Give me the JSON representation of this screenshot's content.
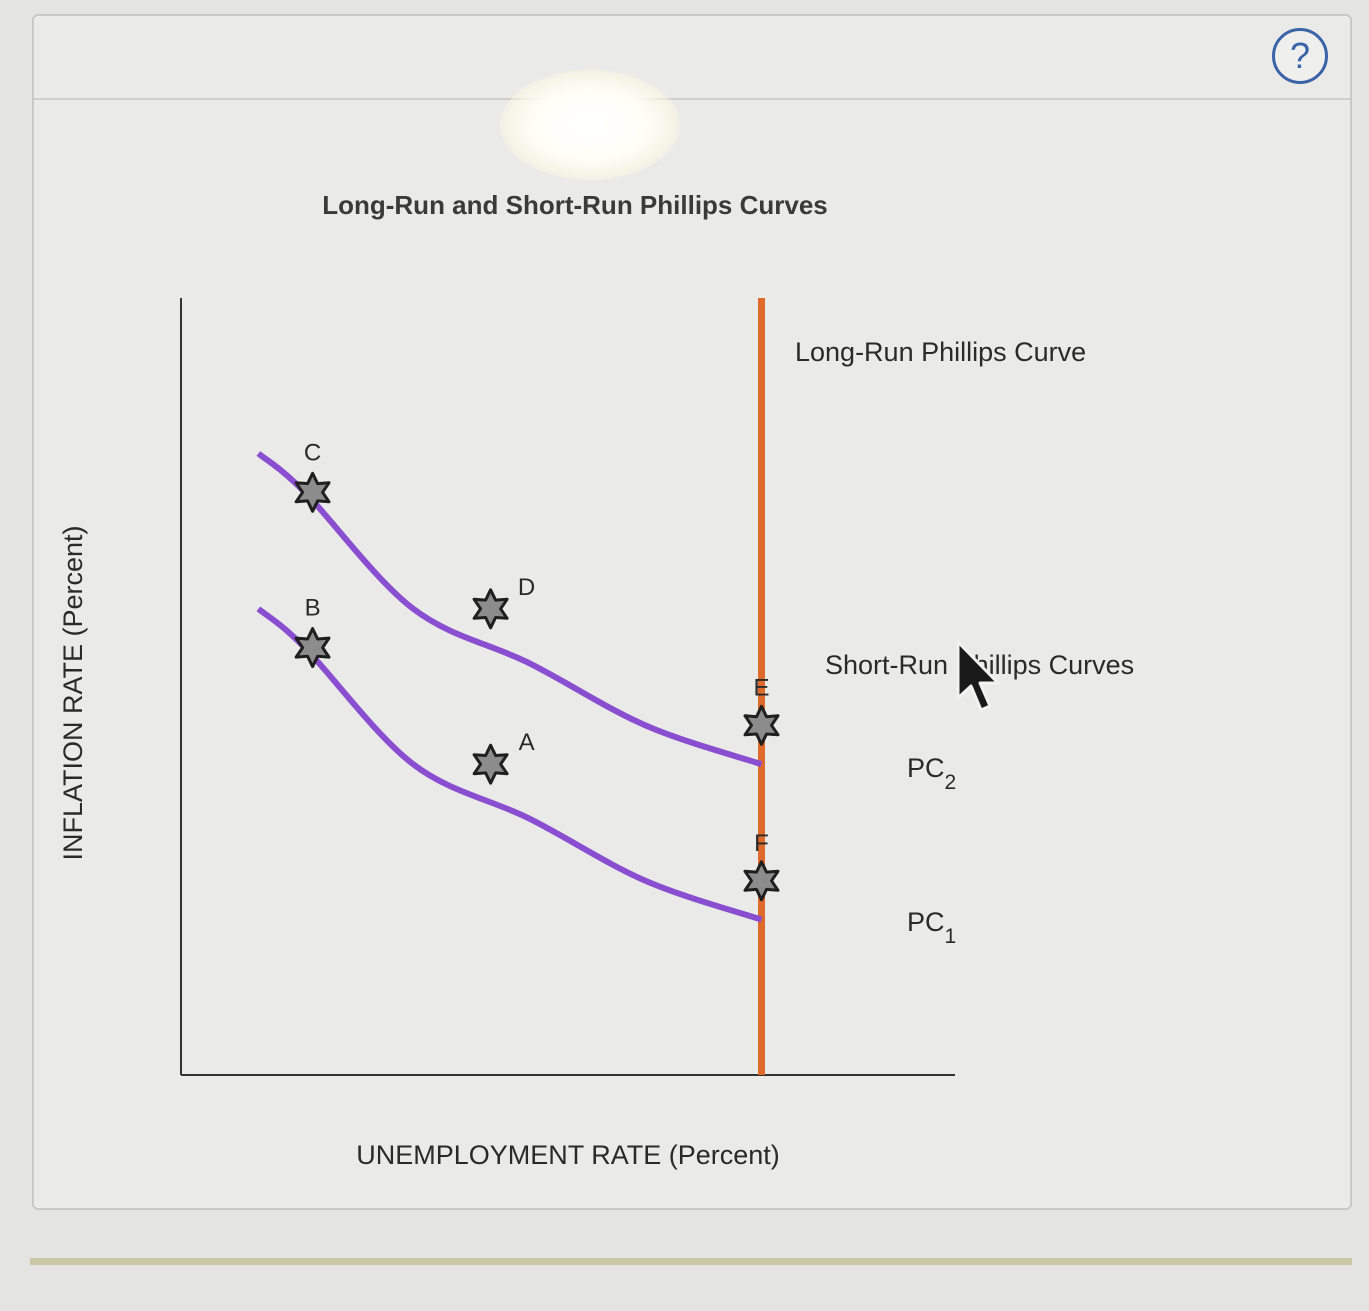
{
  "chart_data": {
    "type": "line",
    "title": "Long-Run and Short-Run Phillips Curves",
    "xlabel": "UNEMPLOYMENT RATE (Percent)",
    "ylabel": "INFLATION RATE (Percent)",
    "xlim": [
      0,
      10
    ],
    "ylim": [
      0,
      10
    ],
    "series": [
      {
        "name": "PC₁",
        "color": "#8a4fd0",
        "x": [
          1.0,
          1.6,
          3.0,
          4.5,
          6.0,
          7.5
        ],
        "y": [
          6.0,
          5.5,
          4.0,
          3.3,
          2.5,
          2.0
        ]
      },
      {
        "name": "PC₂",
        "color": "#8a4fd0",
        "x": [
          1.0,
          1.6,
          3.0,
          4.5,
          6.0,
          7.5
        ],
        "y": [
          8.0,
          7.5,
          6.0,
          5.3,
          4.5,
          4.0
        ]
      }
    ],
    "vertical_line": {
      "name": "Long-Run Phillips Curve",
      "x": 7.5,
      "color": "#e06a2c"
    },
    "points": [
      {
        "label": "A",
        "x": 4.0,
        "y": 4.0
      },
      {
        "label": "B",
        "x": 1.7,
        "y": 5.5
      },
      {
        "label": "C",
        "x": 1.7,
        "y": 7.5
      },
      {
        "label": "D",
        "x": 4.0,
        "y": 6.0
      },
      {
        "label": "E",
        "x": 7.5,
        "y": 4.5
      },
      {
        "label": "F",
        "x": 7.5,
        "y": 2.5
      }
    ],
    "annotations": {
      "lrpc": "Long-Run Phillips Curve",
      "srpc": "Short-Run Phillips Curves",
      "pc2_main": "PC",
      "pc2_sub": "2",
      "pc1_main": "PC",
      "pc1_sub": "1"
    }
  },
  "help": {
    "label": "?"
  }
}
